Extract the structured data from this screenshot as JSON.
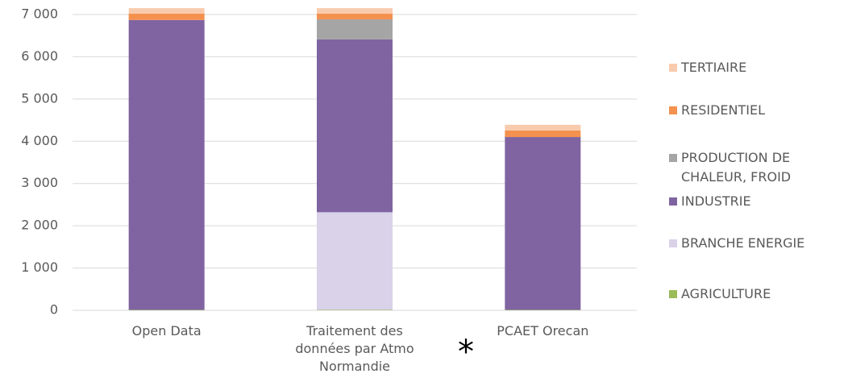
{
  "chart_data": {
    "type": "stacked_bar",
    "categories": [
      "Open Data",
      "Traitement des données par Atmo Normandie",
      "PCAET Orecan"
    ],
    "series": [
      {
        "name": "AGRICULTURE",
        "color": "#9bbb59",
        "values": [
          10,
          10,
          10
        ]
      },
      {
        "name": "BRANCHE ENERGIE",
        "color": "#d9d2e9",
        "values": [
          0,
          2310,
          0
        ]
      },
      {
        "name": "INDUSTRIE",
        "color": "#8064a2",
        "values": [
          6860,
          4090,
          4090
        ]
      },
      {
        "name": "PRODUCTION DE CHALEUR, FROID",
        "color": "#a5a5a5",
        "values": [
          0,
          475,
          0
        ]
      },
      {
        "name": "RESIDENTIEL",
        "color": "#f4914e",
        "values": [
          150,
          135,
          155
        ]
      },
      {
        "name": "TERTIAIRE",
        "color": "#f8cbad",
        "values": [
          130,
          130,
          135
        ]
      }
    ],
    "annotations": [
      "*"
    ],
    "ylim": [
      0,
      7000
    ],
    "yticks": [
      0,
      {
        "value": 1000,
        "label": "1 000"
      },
      {
        "value": 2000,
        "label": "2 000"
      },
      {
        "value": 3000,
        "label": "3 000"
      },
      {
        "value": 4000,
        "label": "4 000"
      },
      {
        "value": 5000,
        "label": "5 000"
      },
      {
        "value": 6000,
        "label": "6 000"
      },
      {
        "value": 7000,
        "label": "7 000"
      }
    ],
    "grid": true,
    "legend": "right"
  }
}
